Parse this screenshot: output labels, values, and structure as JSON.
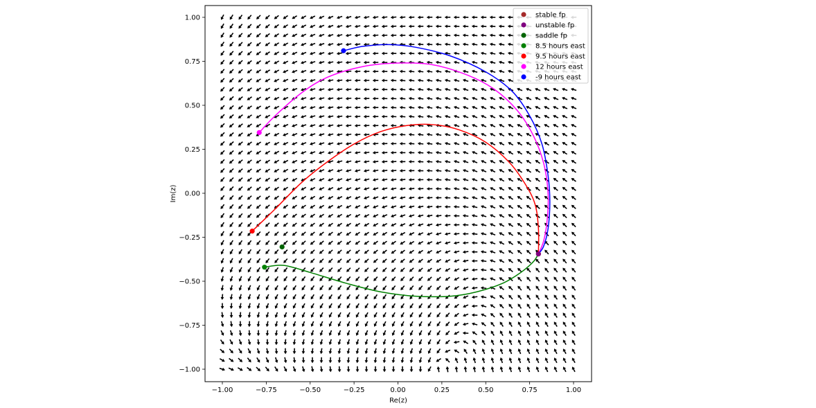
{
  "chart_data": {
    "type": "scatter",
    "xlabel": "Re(z)",
    "ylabel": "Im(z)",
    "xlim": [
      -1.1,
      1.1
    ],
    "ylim": [
      -1.07,
      1.07
    ],
    "xticks": [
      -1.0,
      -0.75,
      -0.5,
      -0.25,
      0.0,
      0.25,
      0.5,
      0.75,
      1.0
    ],
    "yticks": [
      -1.0,
      -0.75,
      -0.5,
      -0.25,
      0.0,
      0.25,
      0.5,
      0.75,
      1.0
    ],
    "xtick_labels": [
      "−1.00",
      "−0.75",
      "−0.50",
      "−0.25",
      "0.00",
      "0.25",
      "0.50",
      "0.75",
      "1.00"
    ],
    "ytick_labels": [
      "−1.00",
      "−0.75",
      "−0.50",
      "−0.25",
      "0.00",
      "0.25",
      "0.50",
      "0.75",
      "1.00"
    ],
    "grid": false,
    "legend_position": "top-right",
    "fixed_points": [
      {
        "name": "stable fp",
        "color": "#a52a2a",
        "x": 0.8,
        "y": -0.345
      },
      {
        "name": "unstable fp",
        "color": "#800080",
        "x": 0.8,
        "y": -0.345
      },
      {
        "name": "saddle fp",
        "color": "#006400",
        "x": -0.66,
        "y": -0.305
      }
    ],
    "trajectories": [
      {
        "name": "8.5 hours east",
        "color": "#008000",
        "points": [
          [
            -0.76,
            -0.42
          ],
          [
            -0.65,
            -0.41
          ],
          [
            -0.5,
            -0.45
          ],
          [
            -0.3,
            -0.51
          ],
          [
            -0.1,
            -0.56
          ],
          [
            0.1,
            -0.585
          ],
          [
            0.3,
            -0.585
          ],
          [
            0.45,
            -0.56
          ],
          [
            0.6,
            -0.51
          ],
          [
            0.7,
            -0.45
          ],
          [
            0.77,
            -0.39
          ],
          [
            0.8,
            -0.345
          ]
        ]
      },
      {
        "name": "9.5 hours east",
        "color": "#ff0000",
        "points": [
          [
            -0.83,
            -0.215
          ],
          [
            -0.7,
            -0.09
          ],
          [
            -0.55,
            0.06
          ],
          [
            -0.4,
            0.18
          ],
          [
            -0.25,
            0.28
          ],
          [
            -0.1,
            0.35
          ],
          [
            0.05,
            0.385
          ],
          [
            0.2,
            0.39
          ],
          [
            0.35,
            0.36
          ],
          [
            0.5,
            0.29
          ],
          [
            0.63,
            0.18
          ],
          [
            0.72,
            0.06
          ],
          [
            0.78,
            -0.06
          ],
          [
            0.8,
            -0.2
          ],
          [
            0.8,
            -0.345
          ]
        ]
      },
      {
        "name": "12 hours east",
        "color": "#ff00ff",
        "points": [
          [
            -0.79,
            0.345
          ],
          [
            -0.7,
            0.44
          ],
          [
            -0.55,
            0.57
          ],
          [
            -0.4,
            0.66
          ],
          [
            -0.2,
            0.72
          ],
          [
            0.0,
            0.74
          ],
          [
            0.2,
            0.73
          ],
          [
            0.4,
            0.67
          ],
          [
            0.55,
            0.59
          ],
          [
            0.68,
            0.47
          ],
          [
            0.77,
            0.33
          ],
          [
            0.83,
            0.17
          ],
          [
            0.855,
            0.0
          ],
          [
            0.85,
            -0.15
          ],
          [
            0.83,
            -0.27
          ],
          [
            0.8,
            -0.345
          ]
        ]
      },
      {
        "name": "-9 hours east",
        "color": "#0000ff",
        "points": [
          [
            -0.31,
            0.81
          ],
          [
            -0.2,
            0.835
          ],
          [
            -0.05,
            0.845
          ],
          [
            0.1,
            0.83
          ],
          [
            0.3,
            0.78
          ],
          [
            0.5,
            0.69
          ],
          [
            0.65,
            0.58
          ],
          [
            0.75,
            0.44
          ],
          [
            0.82,
            0.28
          ],
          [
            0.855,
            0.1
          ],
          [
            0.865,
            -0.05
          ],
          [
            0.855,
            -0.2
          ],
          [
            0.83,
            -0.3
          ],
          [
            0.8,
            -0.345
          ]
        ]
      }
    ],
    "vector_field": {
      "x_range": [
        -1.0,
        1.0
      ],
      "y_range": [
        -1.0,
        1.0
      ],
      "grid_count": 40,
      "arrow_color": "#000000"
    }
  }
}
